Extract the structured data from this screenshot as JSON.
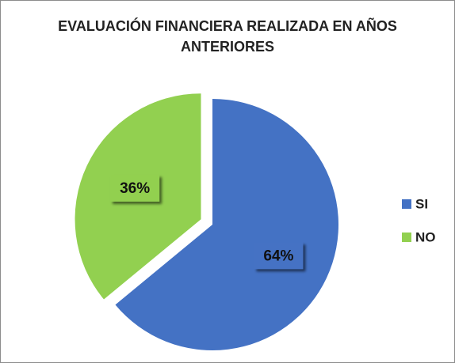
{
  "chart_data": {
    "type": "pie",
    "title": "EVALUACIÓN FINANCIERA REALIZADA EN AÑOS ANTERIORES",
    "categories": [
      "SI",
      "NO"
    ],
    "values": [
      64,
      36
    ],
    "value_labels": [
      "64%",
      "36%"
    ],
    "colors": [
      "#4472c4",
      "#92d050"
    ],
    "legend": "right"
  }
}
